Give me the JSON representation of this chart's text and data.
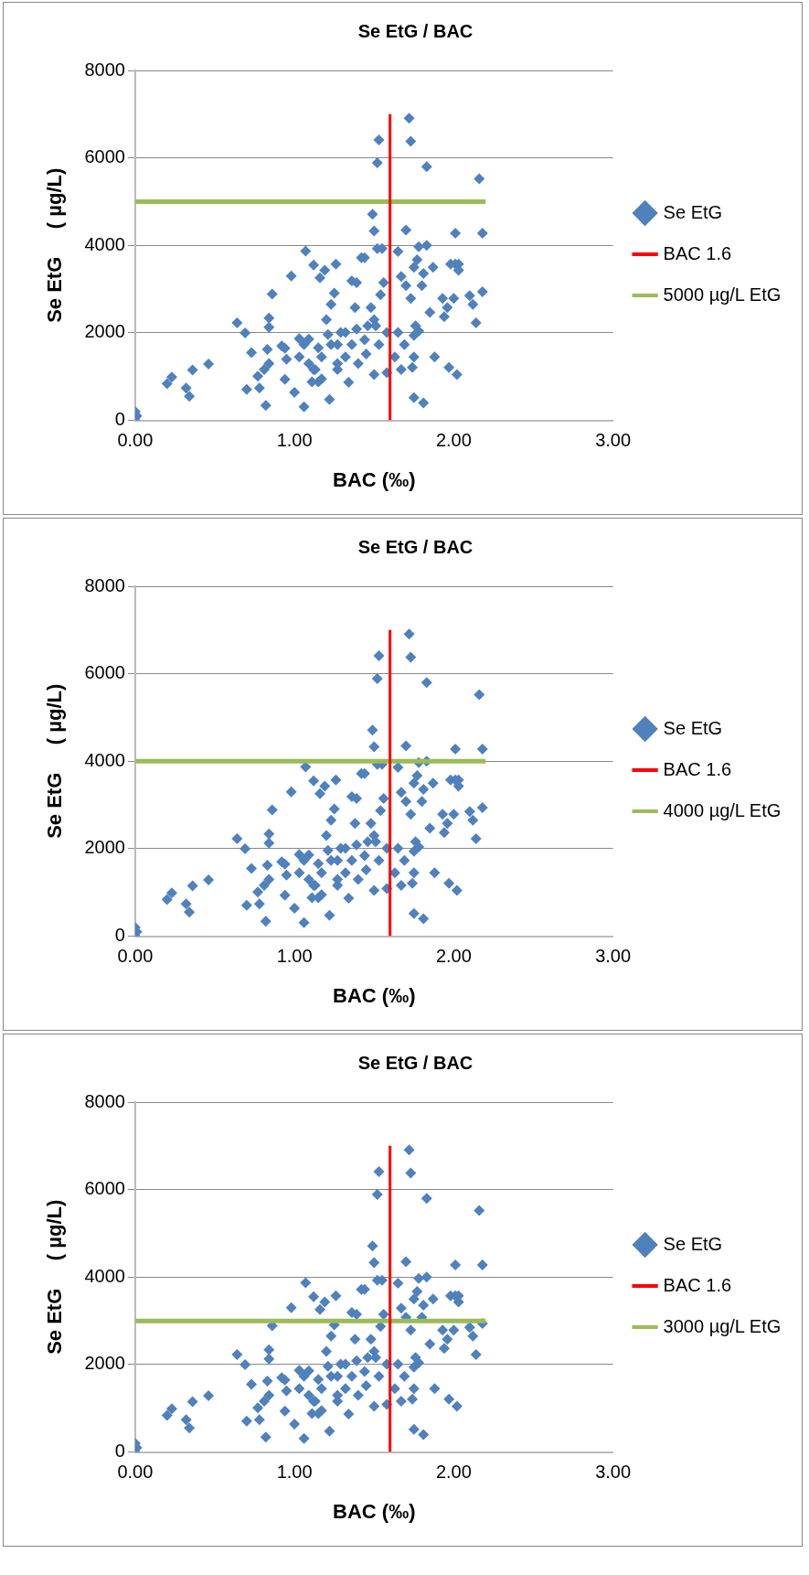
{
  "chart_data": [
    {
      "type": "scatter",
      "title": "Se EtG / BAC",
      "xlabel": "BAC (‰)",
      "ylabel": "Se EtG     ( µg/L)",
      "xlim": [
        0,
        3
      ],
      "xticks": [
        {
          "value": 0,
          "label": "0.00"
        },
        {
          "value": 1,
          "label": "1.00"
        },
        {
          "value": 2,
          "label": "2.00"
        },
        {
          "value": 3,
          "label": "3.00"
        }
      ],
      "ylim": [
        0,
        8000
      ],
      "yticks": [
        0,
        2000,
        4000,
        6000,
        8000
      ],
      "grid": "y",
      "legend": "right",
      "series": [
        {
          "marker": "diamond",
          "name": "Se EtG",
          "color": "#4f81bd",
          "x": [
            0,
            0,
            0.01,
            0.2,
            0.23,
            0.32,
            0.34,
            0.36,
            0.46,
            0.64,
            0.69,
            0.73,
            0.7,
            0.78,
            0.77,
            0.82,
            0.86,
            0.84,
            0.84,
            0.83,
            0.84,
            0.81,
            0.98,
            0.94,
            0.95,
            0.94,
            1.0,
            1.06,
            1.07,
            1.03,
            1.06,
            1.09,
            1.12,
            1.16,
            1.19,
            1.12,
            1.11,
            1.15,
            1.17,
            1.15,
            1.21,
            1.2,
            1.22,
            1.23,
            1.25,
            1.26,
            1.27,
            1.27,
            1.29,
            1.32,
            1.34,
            1.36,
            1.39,
            1.42,
            1.44,
            1.38,
            1.39,
            1.44,
            1.45,
            1.49,
            1.5,
            1.53,
            1.52,
            1.52,
            1.55,
            1.5,
            1.51,
            1.53,
            1.5,
            1.56,
            1.58,
            1.58,
            1.65,
            1.7,
            1.72,
            1.73,
            1.83,
            1.65,
            1.67,
            1.7,
            1.73,
            1.75,
            1.77,
            1.78,
            1.83,
            1.81,
            1.8,
            1.75,
            1.76,
            1.78,
            1.75,
            1.74,
            1.75,
            1.81,
            1.85,
            1.87,
            1.88,
            1.93,
            1.94,
            1.96,
            1.98,
            2.01,
            2.03,
            2.01,
            1.97,
            2.02,
            2.03,
            2.0,
            2.1,
            2.12,
            2.14,
            2.16,
            2.18,
            2.18,
            0.92,
            1.03,
            1.09,
            1.13,
            1.17,
            1.23,
            1.27,
            1.32,
            1.36,
            1.4,
            1.46,
            1.48,
            1.54,
            1.63,
            1.69,
            1.67
          ],
          "values": [
            200,
            0,
            100,
            840,
            990,
            740,
            550,
            1150,
            1290,
            2230,
            2000,
            1550,
            710,
            740,
            1010,
            340,
            2890,
            2340,
            2130,
            1620,
            1300,
            1160,
            3300,
            1650,
            1400,
            940,
            640,
            310,
            3870,
            1450,
            1730,
            1860,
            3550,
            3260,
            3430,
            1160,
            880,
            880,
            1450,
            1660,
            1960,
            2300,
            480,
            2650,
            2910,
            3570,
            1160,
            1730,
            2010,
            1450,
            870,
            3190,
            3150,
            3720,
            3720,
            2580,
            2090,
            1840,
            1520,
            4710,
            4330,
            6410,
            5890,
            3930,
            3930,
            2300,
            2160,
            1730,
            1050,
            3150,
            1090,
            2010,
            3860,
            4350,
            6910,
            6380,
            5800,
            2010,
            3290,
            3080,
            2790,
            3500,
            3670,
            3970,
            4000,
            3360,
            3080,
            1940,
            2160,
            2040,
            1450,
            1210,
            520,
            400,
            2470,
            3500,
            1450,
            2790,
            2370,
            2580,
            3570,
            3570,
            3570,
            4280,
            1210,
            1050,
            3430,
            2790,
            2850,
            2650,
            2230,
            5520,
            4280,
            2940,
            1700,
            1870,
            1300,
            1160,
            950,
            1730,
            1300,
            2010,
            1730,
            1300,
            2160,
            2580,
            2870,
            1450,
            1730,
            1160
          ]
        },
        {
          "type": "line",
          "marker": "none",
          "name": "BAC 1.6",
          "color": "#ff0000",
          "x": [
            1.6,
            1.6
          ],
          "values": [
            0,
            7000
          ]
        },
        {
          "type": "line",
          "marker": "none",
          "name": "5000 µg/L EtG",
          "color": "#9bbb59",
          "x": [
            0,
            2.2
          ],
          "values": [
            5000,
            5000
          ]
        }
      ]
    },
    {
      "type": "scatter",
      "title": "Se EtG / BAC",
      "xlabel": "BAC (‰)",
      "ylabel": "Se EtG     ( µg/L)",
      "xlim": [
        0,
        3
      ],
      "xticks": [
        {
          "value": 0,
          "label": "0.00"
        },
        {
          "value": 1,
          "label": "1.00"
        },
        {
          "value": 2,
          "label": "2.00"
        },
        {
          "value": 3,
          "label": "3.00"
        }
      ],
      "ylim": [
        0,
        8000
      ],
      "yticks": [
        0,
        2000,
        4000,
        6000,
        8000
      ],
      "grid": "y",
      "legend": "right",
      "series": [
        {
          "marker": "diamond",
          "name": "Se EtG",
          "color": "#4f81bd",
          "x": [
            0,
            0,
            0.01,
            0.2,
            0.23,
            0.32,
            0.34,
            0.36,
            0.46,
            0.64,
            0.69,
            0.73,
            0.7,
            0.78,
            0.77,
            0.82,
            0.86,
            0.84,
            0.84,
            0.83,
            0.84,
            0.81,
            0.98,
            0.94,
            0.95,
            0.94,
            1.0,
            1.06,
            1.07,
            1.03,
            1.06,
            1.09,
            1.12,
            1.16,
            1.19,
            1.12,
            1.11,
            1.15,
            1.17,
            1.15,
            1.21,
            1.2,
            1.22,
            1.23,
            1.25,
            1.26,
            1.27,
            1.27,
            1.29,
            1.32,
            1.34,
            1.36,
            1.39,
            1.42,
            1.44,
            1.38,
            1.39,
            1.44,
            1.45,
            1.49,
            1.5,
            1.53,
            1.52,
            1.52,
            1.55,
            1.5,
            1.51,
            1.53,
            1.5,
            1.56,
            1.58,
            1.58,
            1.65,
            1.7,
            1.72,
            1.73,
            1.83,
            1.65,
            1.67,
            1.7,
            1.73,
            1.75,
            1.77,
            1.78,
            1.83,
            1.81,
            1.8,
            1.75,
            1.76,
            1.78,
            1.75,
            1.74,
            1.75,
            1.81,
            1.85,
            1.87,
            1.88,
            1.93,
            1.94,
            1.96,
            1.98,
            2.01,
            2.03,
            2.01,
            1.97,
            2.02,
            2.03,
            2.0,
            2.1,
            2.12,
            2.14,
            2.16,
            2.18,
            2.18,
            0.92,
            1.03,
            1.09,
            1.13,
            1.17,
            1.23,
            1.27,
            1.32,
            1.36,
            1.4,
            1.46,
            1.48,
            1.54,
            1.63,
            1.69,
            1.67
          ],
          "values": [
            200,
            0,
            100,
            840,
            990,
            740,
            550,
            1150,
            1290,
            2230,
            2000,
            1550,
            710,
            740,
            1010,
            340,
            2890,
            2340,
            2130,
            1620,
            1300,
            1160,
            3300,
            1650,
            1400,
            940,
            640,
            310,
            3870,
            1450,
            1730,
            1860,
            3550,
            3260,
            3430,
            1160,
            880,
            880,
            1450,
            1660,
            1960,
            2300,
            480,
            2650,
            2910,
            3570,
            1160,
            1730,
            2010,
            1450,
            870,
            3190,
            3150,
            3720,
            3720,
            2580,
            2090,
            1840,
            1520,
            4710,
            4330,
            6410,
            5890,
            3930,
            3930,
            2300,
            2160,
            1730,
            1050,
            3150,
            1090,
            2010,
            3860,
            4350,
            6910,
            6380,
            5800,
            2010,
            3290,
            3080,
            2790,
            3500,
            3670,
            3970,
            4000,
            3360,
            3080,
            1940,
            2160,
            2040,
            1450,
            1210,
            520,
            400,
            2470,
            3500,
            1450,
            2790,
            2370,
            2580,
            3570,
            3570,
            3570,
            4280,
            1210,
            1050,
            3430,
            2790,
            2850,
            2650,
            2230,
            5520,
            4280,
            2940,
            1700,
            1870,
            1300,
            1160,
            950,
            1730,
            1300,
            2010,
            1730,
            1300,
            2160,
            2580,
            2870,
            1450,
            1730,
            1160
          ]
        },
        {
          "type": "line",
          "marker": "none",
          "name": "BAC 1.6",
          "color": "#ff0000",
          "x": [
            1.6,
            1.6
          ],
          "values": [
            0,
            7000
          ]
        },
        {
          "type": "line",
          "marker": "none",
          "name": "4000 µg/L EtG",
          "color": "#9bbb59",
          "x": [
            0,
            2.2
          ],
          "values": [
            4000,
            4000
          ]
        }
      ]
    },
    {
      "type": "scatter",
      "title": "Se EtG / BAC",
      "xlabel": "BAC (‰)",
      "ylabel": "Se EtG     ( µg/L)",
      "xlim": [
        0,
        3
      ],
      "xticks": [
        {
          "value": 0,
          "label": "0.00"
        },
        {
          "value": 1,
          "label": "1.00"
        },
        {
          "value": 2,
          "label": "2.00"
        },
        {
          "value": 3,
          "label": "3.00"
        }
      ],
      "ylim": [
        0,
        8000
      ],
      "yticks": [
        0,
        2000,
        4000,
        6000,
        8000
      ],
      "grid": "y",
      "legend": "right",
      "series": [
        {
          "marker": "diamond",
          "name": "Se EtG",
          "color": "#4f81bd",
          "x": [
            0,
            0,
            0.01,
            0.2,
            0.23,
            0.32,
            0.34,
            0.36,
            0.46,
            0.64,
            0.69,
            0.73,
            0.7,
            0.78,
            0.77,
            0.82,
            0.86,
            0.84,
            0.84,
            0.83,
            0.84,
            0.81,
            0.98,
            0.94,
            0.95,
            0.94,
            1.0,
            1.06,
            1.07,
            1.03,
            1.06,
            1.09,
            1.12,
            1.16,
            1.19,
            1.12,
            1.11,
            1.15,
            1.17,
            1.15,
            1.21,
            1.2,
            1.22,
            1.23,
            1.25,
            1.26,
            1.27,
            1.27,
            1.29,
            1.32,
            1.34,
            1.36,
            1.39,
            1.42,
            1.44,
            1.38,
            1.39,
            1.44,
            1.45,
            1.49,
            1.5,
            1.53,
            1.52,
            1.52,
            1.55,
            1.5,
            1.51,
            1.53,
            1.5,
            1.56,
            1.58,
            1.58,
            1.65,
            1.7,
            1.72,
            1.73,
            1.83,
            1.65,
            1.67,
            1.7,
            1.73,
            1.75,
            1.77,
            1.78,
            1.83,
            1.81,
            1.8,
            1.75,
            1.76,
            1.78,
            1.75,
            1.74,
            1.75,
            1.81,
            1.85,
            1.87,
            1.88,
            1.93,
            1.94,
            1.96,
            1.98,
            2.01,
            2.03,
            2.01,
            1.97,
            2.02,
            2.03,
            2.0,
            2.1,
            2.12,
            2.14,
            2.16,
            2.18,
            2.18,
            0.92,
            1.03,
            1.09,
            1.13,
            1.17,
            1.23,
            1.27,
            1.32,
            1.36,
            1.4,
            1.46,
            1.48,
            1.54,
            1.63,
            1.69,
            1.67
          ],
          "values": [
            200,
            0,
            100,
            840,
            990,
            740,
            550,
            1150,
            1290,
            2230,
            2000,
            1550,
            710,
            740,
            1010,
            340,
            2890,
            2340,
            2130,
            1620,
            1300,
            1160,
            3300,
            1650,
            1400,
            940,
            640,
            310,
            3870,
            1450,
            1730,
            1860,
            3550,
            3260,
            3430,
            1160,
            880,
            880,
            1450,
            1660,
            1960,
            2300,
            480,
            2650,
            2910,
            3570,
            1160,
            1730,
            2010,
            1450,
            870,
            3190,
            3150,
            3720,
            3720,
            2580,
            2090,
            1840,
            1520,
            4710,
            4330,
            6410,
            5890,
            3930,
            3930,
            2300,
            2160,
            1730,
            1050,
            3150,
            1090,
            2010,
            3860,
            4350,
            6910,
            6380,
            5800,
            2010,
            3290,
            3080,
            2790,
            3500,
            3670,
            3970,
            4000,
            3360,
            3080,
            1940,
            2160,
            2040,
            1450,
            1210,
            520,
            400,
            2470,
            3500,
            1450,
            2790,
            2370,
            2580,
            3570,
            3570,
            3570,
            4280,
            1210,
            1050,
            3430,
            2790,
            2850,
            2650,
            2230,
            5520,
            4280,
            2940,
            1700,
            1870,
            1300,
            1160,
            950,
            1730,
            1300,
            2010,
            1730,
            1300,
            2160,
            2580,
            2870,
            1450,
            1730,
            1160
          ]
        },
        {
          "type": "line",
          "marker": "none",
          "name": "BAC 1.6",
          "color": "#ff0000",
          "x": [
            1.6,
            1.6
          ],
          "values": [
            0,
            7000
          ]
        },
        {
          "type": "line",
          "marker": "none",
          "name": "3000 µg/L EtG",
          "color": "#9bbb59",
          "x": [
            0,
            2.2
          ],
          "values": [
            3000,
            3000
          ]
        }
      ]
    }
  ]
}
